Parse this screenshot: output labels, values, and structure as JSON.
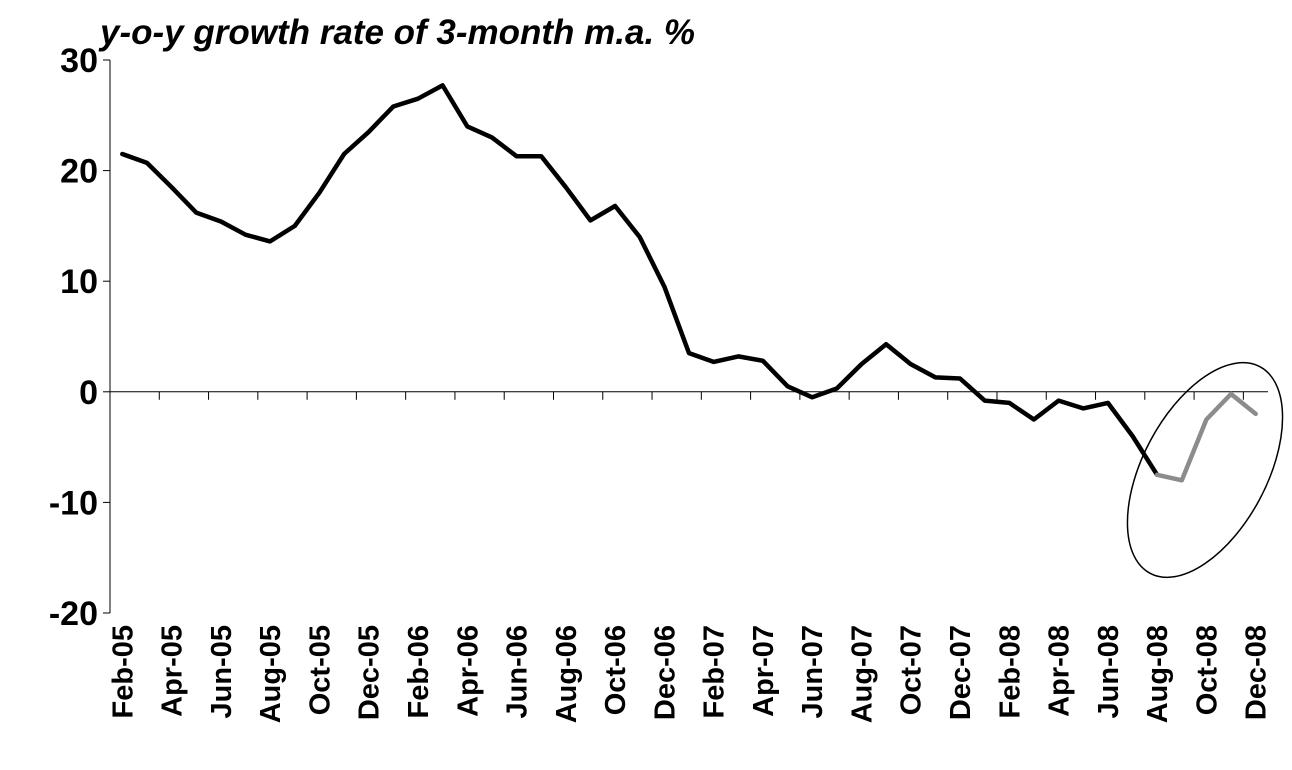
{
  "chart_data": {
    "type": "line",
    "title": "y-o-y growth rate of 3-month m.a. %",
    "categories": [
      "Feb-05",
      null,
      "Apr-05",
      null,
      "Jun-05",
      null,
      "Aug-05",
      null,
      "Oct-05",
      null,
      "Dec-05",
      null,
      "Feb-06",
      null,
      "Apr-06",
      null,
      "Jun-06",
      null,
      "Aug-06",
      null,
      "Oct-06",
      null,
      "Dec-06",
      null,
      "Feb-07",
      null,
      "Apr-07",
      null,
      "Jun-07",
      null,
      "Aug-07",
      null,
      "Oct-07",
      null,
      "Dec-07",
      null,
      "Feb-08",
      null,
      "Apr-08",
      null,
      "Jun-08",
      null,
      "Aug-08",
      null,
      "Oct-08",
      null,
      "Dec-08"
    ],
    "series": [
      {
        "color": "#000000",
        "values": [
          21.5,
          20.7,
          18.5,
          16.2,
          15.4,
          14.2,
          13.6,
          15.0,
          18.0,
          21.5,
          23.5,
          25.8,
          26.5,
          27.7,
          24.0,
          23.0,
          21.3,
          21.3,
          18.5,
          15.5,
          16.8,
          14.0,
          9.5,
          3.5,
          2.7,
          3.2,
          2.8,
          0.5,
          -0.5,
          0.3,
          2.5,
          4.3,
          2.5,
          1.3,
          1.2,
          -0.8,
          -1.0,
          -2.5,
          -0.8,
          -1.5,
          -1.0,
          -4.0,
          -7.5,
          null,
          null,
          null,
          null
        ]
      },
      {
        "color": "#8c8c8c",
        "values": [
          null,
          null,
          null,
          null,
          null,
          null,
          null,
          null,
          null,
          null,
          null,
          null,
          null,
          null,
          null,
          null,
          null,
          null,
          null,
          null,
          null,
          null,
          null,
          null,
          null,
          null,
          null,
          null,
          null,
          null,
          null,
          null,
          null,
          null,
          null,
          null,
          null,
          null,
          null,
          null,
          null,
          null,
          -7.5,
          -8.0,
          -2.5,
          -0.2,
          -2.0
        ]
      }
    ],
    "ylim": [
      -20,
      30
    ],
    "yticks": [
      -20,
      -10,
      0,
      10,
      20,
      30
    ]
  }
}
